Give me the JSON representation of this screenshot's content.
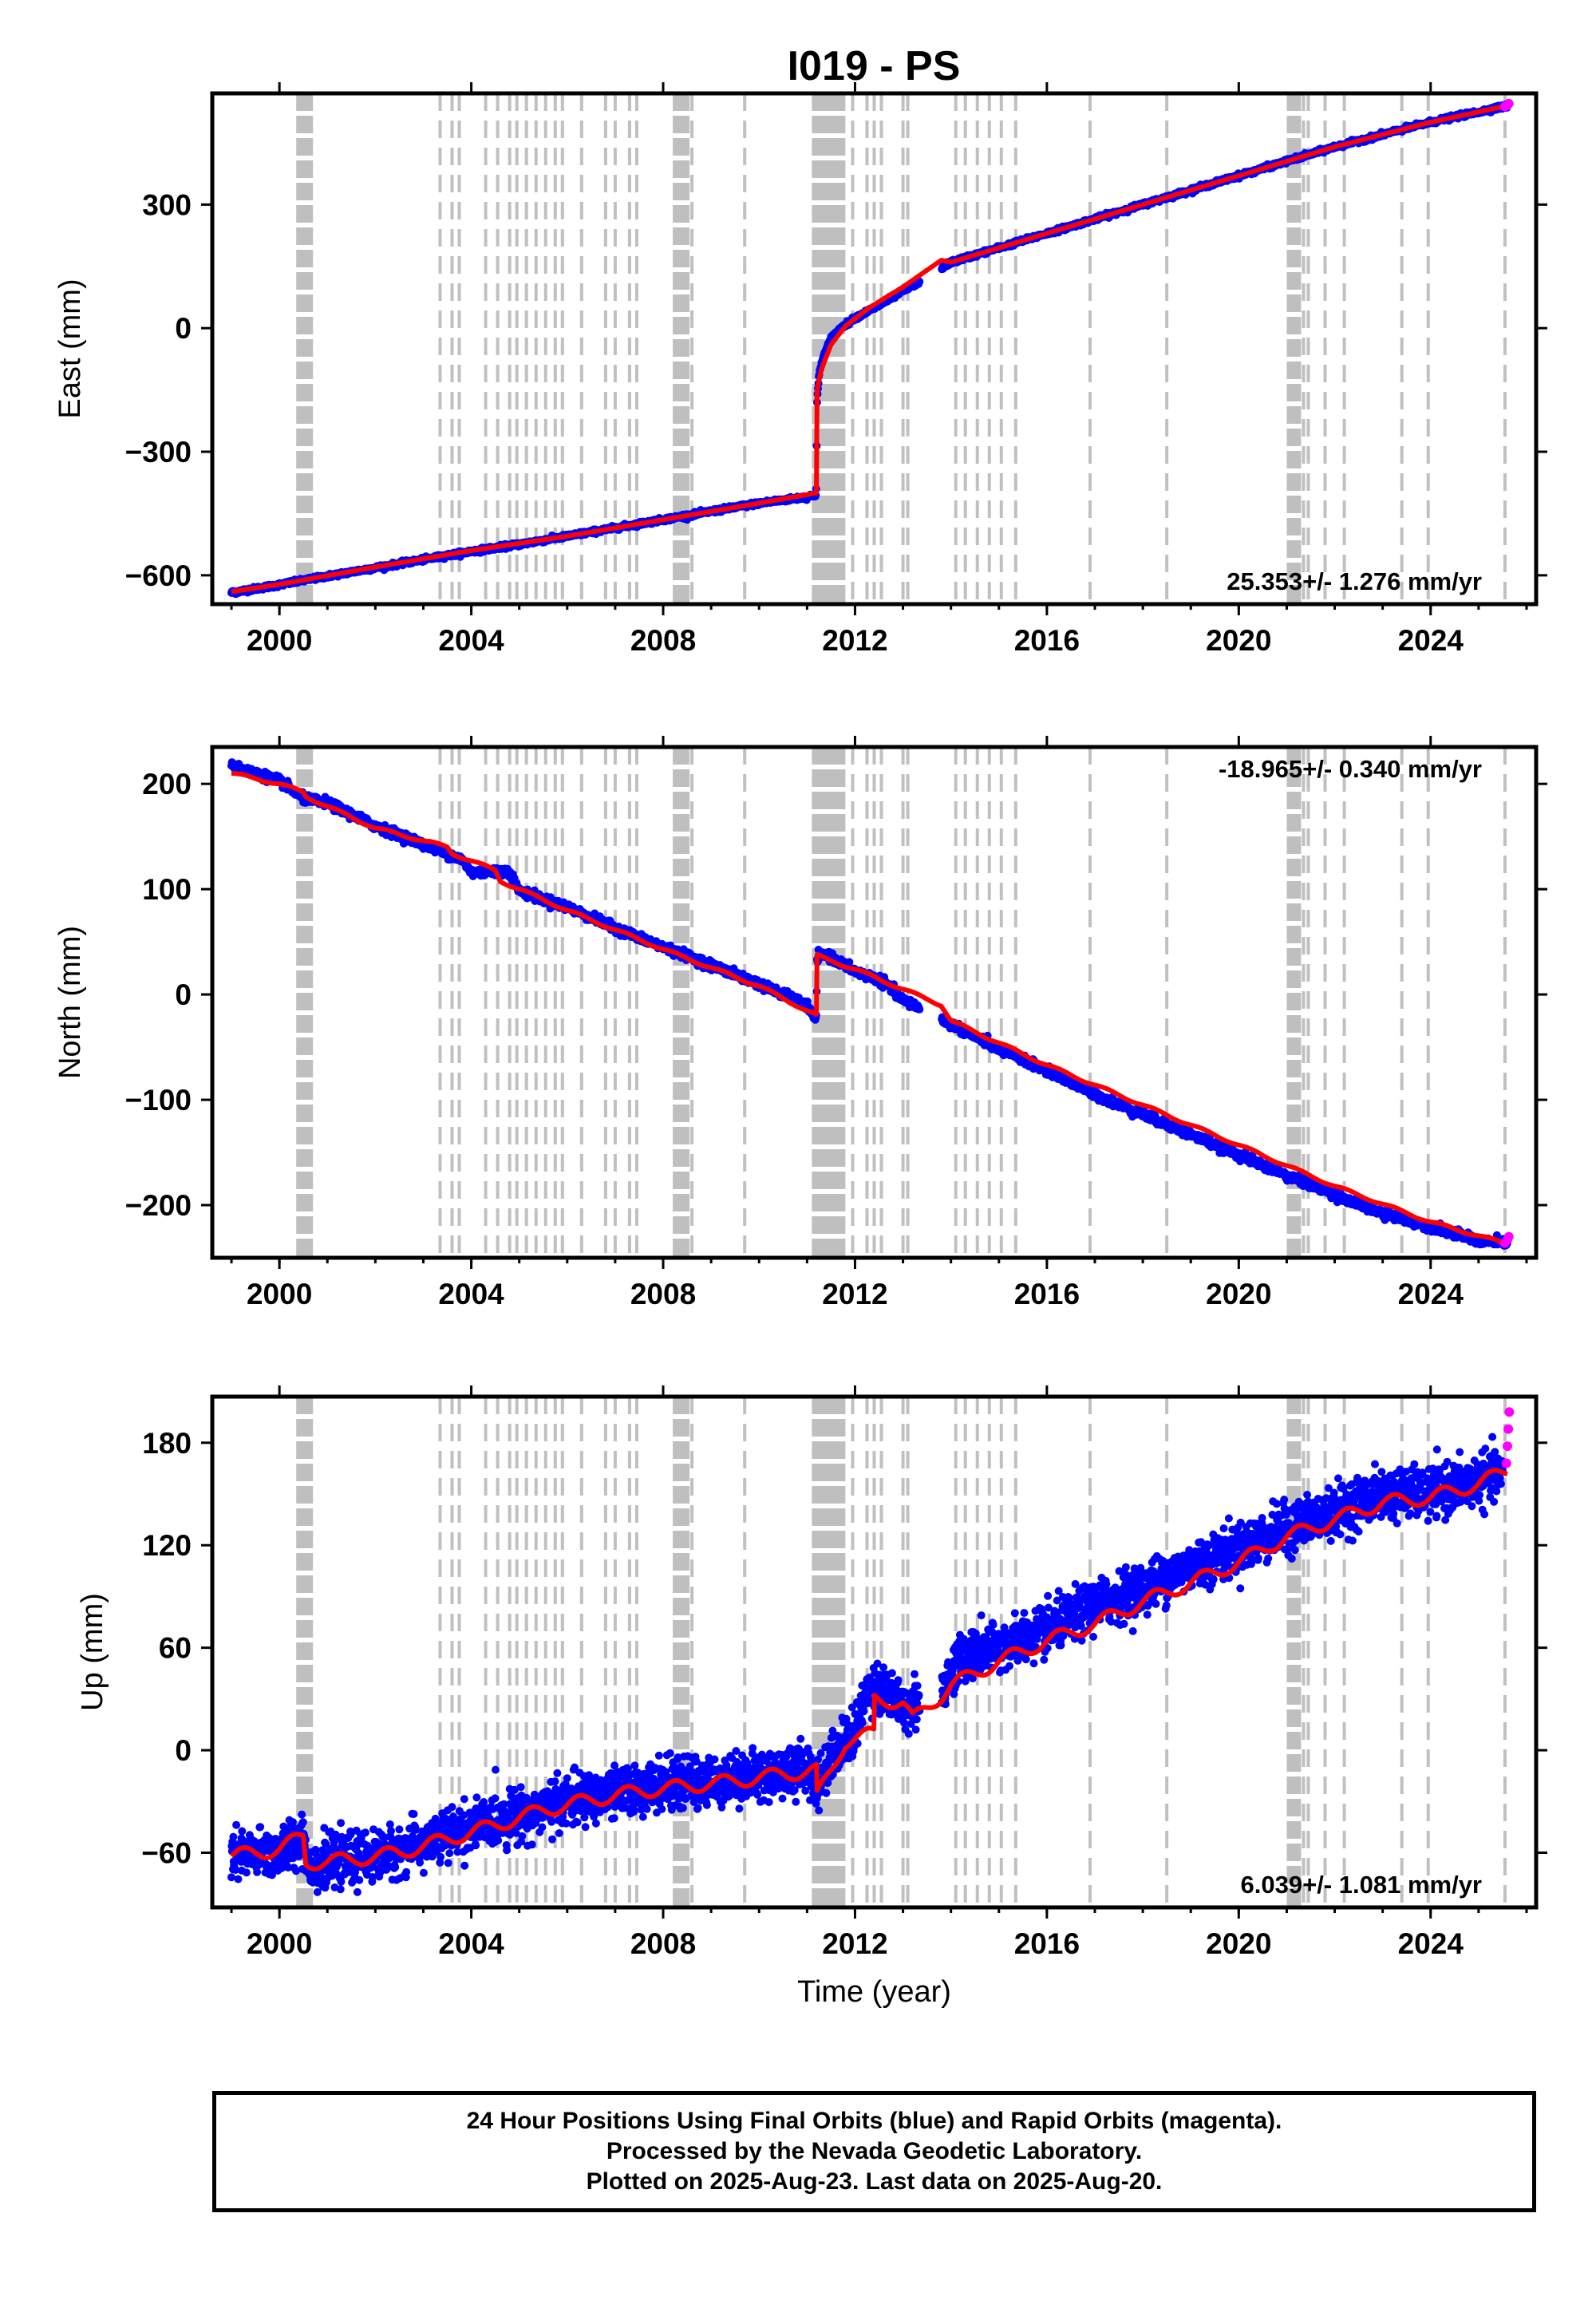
{
  "title": "I019 - PS",
  "footer": {
    "line1": "24 Hour Positions Using Final Orbits (blue) and Rapid Orbits (magenta).",
    "line2": "Processed by the Nevada Geodetic Laboratory.",
    "line3": "Plotted on 2025-Aug-23. Last data on 2025-Aug-20."
  },
  "colors": {
    "final": "#0000ff",
    "rapid": "#ff00ff",
    "model": "#ff0000",
    "events": "#c0c0c0"
  },
  "chart_data": [
    {
      "type": "scatter",
      "ylabel": "East (mm)",
      "xlabel": "",
      "rate_label": "25.353+/- 1.276 mm/yr",
      "xlim": [
        1998.6,
        2026.2
      ],
      "ylim": [
        -670,
        570
      ],
      "xticks": [
        2000,
        2004,
        2008,
        2012,
        2016,
        2020,
        2024
      ],
      "yticks": [
        -600,
        -300,
        0,
        300
      ],
      "grid": false,
      "series": [
        {
          "role": "final",
          "x": [
            1999.0,
            2000.0,
            2001.0,
            2002.0,
            2003.0,
            2004.0,
            2005.0,
            2006.0,
            2007.0,
            2008.0,
            2009.0,
            2010.0,
            2011.0,
            2011.19,
            2011.21,
            2011.25,
            2011.3,
            2011.4,
            2011.5,
            2011.7,
            2012.0,
            2012.5,
            2013.0,
            2013.3,
            2014.0,
            2015.0,
            2016.0,
            2017.0,
            2018.0,
            2019.0,
            2020.0,
            2021.0,
            2022.0,
            2023.0,
            2024.0,
            2025.0,
            2025.6
          ],
          "y": [
            -642,
            -623,
            -602,
            -582,
            -562,
            -542,
            -525,
            -505,
            -485,
            -465,
            -445,
            -425,
            -410,
            -404,
            -170,
            -115,
            -85,
            -50,
            -25,
            0,
            25,
            55,
            90,
            110,
            160,
            195,
            230,
            265,
            300,
            335,
            370,
            405,
            440,
            470,
            500,
            525,
            540
          ]
        },
        {
          "role": "rapid",
          "x": [
            2025.55,
            2025.6,
            2025.63
          ],
          "y": [
            538,
            541,
            545
          ]
        },
        {
          "role": "model",
          "x": [
            1999.0,
            2000.0,
            2002.0,
            2004.0,
            2006.0,
            2008.0,
            2010.0,
            2011.2,
            2011.2,
            2011.3,
            2011.5,
            2011.8,
            2012.3,
            2013.0,
            2013.8,
            2014.0,
            2016.0,
            2018.0,
            2020.0,
            2022.0,
            2024.0,
            2025.6
          ],
          "y": [
            -640,
            -622,
            -580,
            -540,
            -505,
            -465,
            -425,
            -400,
            -155,
            -100,
            -40,
            5,
            50,
            100,
            165,
            160,
            230,
            300,
            370,
            440,
            500,
            540
          ]
        }
      ]
    },
    {
      "type": "scatter",
      "ylabel": "North (mm)",
      "xlabel": "",
      "rate_label": "-18.965+/- 0.340 mm/yr",
      "xlim": [
        1998.6,
        2026.2
      ],
      "ylim": [
        -250,
        235
      ],
      "xticks": [
        2000,
        2004,
        2008,
        2012,
        2016,
        2020,
        2024
      ],
      "yticks": [
        -200,
        -100,
        0,
        100,
        200
      ],
      "grid": false,
      "series": [
        {
          "role": "final",
          "x": [
            1999.0,
            2000.0,
            2000.5,
            2001.0,
            2002.0,
            2003.0,
            2003.8,
            2004.0,
            2004.8,
            2005.0,
            2006.0,
            2007.0,
            2008.0,
            2009.0,
            2010.0,
            2011.0,
            2011.19,
            2011.21,
            2011.4,
            2012.0,
            2012.6,
            2013.0,
            2014.0,
            2015.0,
            2016.0,
            2017.0,
            2018.0,
            2019.0,
            2020.0,
            2021.0,
            2022.0,
            2023.0,
            2024.0,
            2025.0,
            2025.6
          ],
          "y": [
            217,
            203,
            186,
            182,
            160,
            143,
            128,
            116,
            117,
            98,
            83,
            63,
            45,
            28,
            10,
            -10,
            -25,
            35,
            38,
            22,
            12,
            -5,
            -28,
            -52,
            -72,
            -95,
            -114,
            -133,
            -152,
            -172,
            -190,
            -208,
            -220,
            -234,
            -236
          ]
        },
        {
          "role": "rapid",
          "x": [
            2025.55,
            2025.6,
            2025.63
          ],
          "y": [
            -236,
            -233,
            -230
          ]
        },
        {
          "role": "model",
          "x": [
            1999.0,
            2000.0,
            2000.5,
            2000.55,
            2002.0,
            2003.5,
            2003.6,
            2004.5,
            2004.6,
            2006.0,
            2008.0,
            2010.0,
            2011.2,
            2011.2,
            2012.0,
            2013.0,
            2013.8,
            2014.0,
            2016.0,
            2018.0,
            2020.0,
            2022.0,
            2024.0,
            2025.6
          ],
          "y": [
            210,
            200,
            192,
            188,
            158,
            140,
            134,
            118,
            108,
            80,
            43,
            8,
            -20,
            37,
            24,
            5,
            -10,
            -25,
            -67,
            -105,
            -143,
            -182,
            -216,
            -237
          ]
        }
      ]
    },
    {
      "type": "scatter",
      "ylabel": "Up (mm)",
      "xlabel": "Time (year)",
      "rate_label": "6.039+/- 1.081 mm/yr",
      "xlim": [
        1998.6,
        2026.2
      ],
      "ylim": [
        -92,
        207
      ],
      "xticks": [
        2000,
        2004,
        2008,
        2012,
        2016,
        2020,
        2024
      ],
      "yticks": [
        -60,
        0,
        60,
        120,
        180
      ],
      "grid": false,
      "series": [
        {
          "role": "final",
          "x": [
            1999.0,
            2000.0,
            2000.5,
            2000.6,
            2001.0,
            2002.0,
            2003.0,
            2004.0,
            2005.0,
            2006.0,
            2007.0,
            2008.0,
            2009.0,
            2010.0,
            2011.0,
            2011.2,
            2011.6,
            2012.0,
            2012.3,
            2012.6,
            2013.0,
            2013.8,
            2014.2,
            2015.0,
            2016.0,
            2017.0,
            2018.0,
            2019.0,
            2020.0,
            2021.0,
            2022.0,
            2023.0,
            2024.0,
            2025.0,
            2025.5
          ],
          "y": [
            -62,
            -60,
            -50,
            -68,
            -66,
            -62,
            -55,
            -45,
            -38,
            -30,
            -25,
            -20,
            -18,
            -15,
            -10,
            -20,
            0,
            10,
            40,
            35,
            25,
            35,
            55,
            60,
            70,
            85,
            95,
            108,
            118,
            130,
            140,
            150,
            150,
            158,
            162
          ]
        },
        {
          "role": "rapid",
          "x": [
            2025.58,
            2025.6,
            2025.62,
            2025.64
          ],
          "y": [
            168,
            178,
            188,
            198
          ]
        },
        {
          "role": "model",
          "x": [
            1999.0,
            2000.0,
            2000.5,
            2000.55,
            2001.5,
            2002.5,
            2003.5,
            2004.5,
            2005.5,
            2006.5,
            2007.5,
            2008.5,
            2009.5,
            2010.5,
            2011.2,
            2011.2,
            2011.8,
            2012.4,
            2012.4,
            2013.0,
            2013.2,
            2013.8,
            2014.0,
            2015.0,
            2016.0,
            2017.0,
            2018.0,
            2019.0,
            2020.0,
            2021.0,
            2022.0,
            2023.0,
            2024.0,
            2025.0,
            2025.6
          ],
          "y": [
            -62,
            -58,
            -50,
            -66,
            -64,
            -60,
            -52,
            -44,
            -35,
            -29,
            -24,
            -21,
            -18,
            -14,
            -12,
            -28,
            5,
            10,
            30,
            28,
            18,
            32,
            38,
            52,
            64,
            74,
            87,
            98,
            110,
            125,
            135,
            145,
            148,
            156,
            164
          ]
        }
      ]
    }
  ],
  "event_lines": {
    "dashed": [
      2003.35,
      2003.6,
      2003.75,
      2004.3,
      2004.55,
      2004.8,
      2004.95,
      2005.15,
      2005.35,
      2005.55,
      2005.75,
      2005.9,
      2006.3,
      2006.8,
      2007.0,
      2007.3,
      2007.45,
      2008.6,
      2009.7,
      2011.95,
      2012.25,
      2012.4,
      2012.55,
      2013.0,
      2013.1,
      2014.1,
      2014.3,
      2014.55,
      2014.8,
      2015.05,
      2015.35,
      2016.9,
      2018.5,
      2021.35,
      2021.45,
      2021.8,
      2022.2,
      2023.4,
      2023.95,
      2025.55
    ],
    "heavy": [
      2000.45,
      2000.6,
      2008.3,
      2008.45,
      2011.2,
      2011.3,
      2011.4,
      2011.55,
      2011.7,
      2021.1,
      2021.2
    ]
  }
}
